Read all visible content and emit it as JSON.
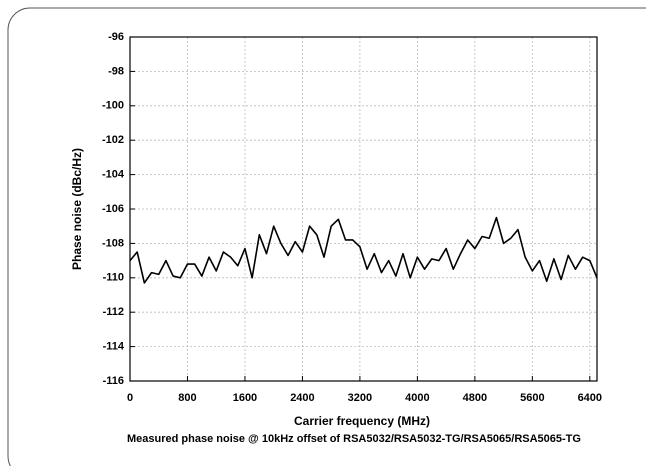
{
  "chart_data": {
    "type": "line",
    "x_label": "Carrier frequency (MHz)",
    "y_label": "Phase noise (dBc/Hz)",
    "caption": "Measured phase noise @ 10kHz offset of RSA5032/RSA5032-TG/RSA5065/RSA5065-TG",
    "x": [
      0,
      100,
      200,
      300,
      400,
      500,
      600,
      700,
      800,
      900,
      1000,
      1100,
      1200,
      1300,
      1400,
      1500,
      1600,
      1700,
      1800,
      1900,
      2000,
      2100,
      2200,
      2300,
      2400,
      2500,
      2600,
      2700,
      2800,
      2900,
      3000,
      3100,
      3200,
      3300,
      3400,
      3500,
      3600,
      3700,
      3800,
      3900,
      4000,
      4100,
      4200,
      4300,
      4400,
      4500,
      4600,
      4700,
      4800,
      4900,
      5000,
      5100,
      5200,
      5300,
      5400,
      5500,
      5600,
      5700,
      5800,
      5900,
      6000,
      6100,
      6200,
      6300,
      6400,
      6500
    ],
    "series": [
      {
        "name": "Phase noise",
        "color": "#000000",
        "values": [
          -109,
          -108.5,
          -110.3,
          -109.7,
          -109.8,
          -109,
          -109.9,
          -110,
          -109.2,
          -109.2,
          -109.9,
          -108.8,
          -109.6,
          -108.5,
          -108.8,
          -109.3,
          -108.3,
          -110,
          -107.5,
          -108.6,
          -107,
          -108,
          -108.7,
          -107.9,
          -108.5,
          -107,
          -107.5,
          -108.8,
          -107,
          -106.6,
          -107.8,
          -107.8,
          -108.2,
          -109.5,
          -108.6,
          -109.7,
          -109,
          -109.9,
          -108.6,
          -110,
          -108.8,
          -109.5,
          -108.9,
          -109,
          -108.3,
          -109.5,
          -108.6,
          -107.8,
          -108.3,
          -107.6,
          -107.7,
          -106.5,
          -108,
          -107.7,
          -107.2,
          -108.8,
          -109.6,
          -109,
          -110.2,
          -108.9,
          -110.1,
          -108.7,
          -109.5,
          -108.8,
          -109,
          -110
        ]
      }
    ],
    "xlim": [
      0,
      6500
    ],
    "xticks": [
      0,
      800,
      1600,
      2400,
      3200,
      4000,
      4800,
      5600,
      6400
    ],
    "ylim": [
      -116,
      -96
    ],
    "yticks": [
      -116,
      -114,
      -112,
      -110,
      -108,
      -106,
      -104,
      -102,
      -100,
      -98,
      -96
    ],
    "grid": true
  }
}
